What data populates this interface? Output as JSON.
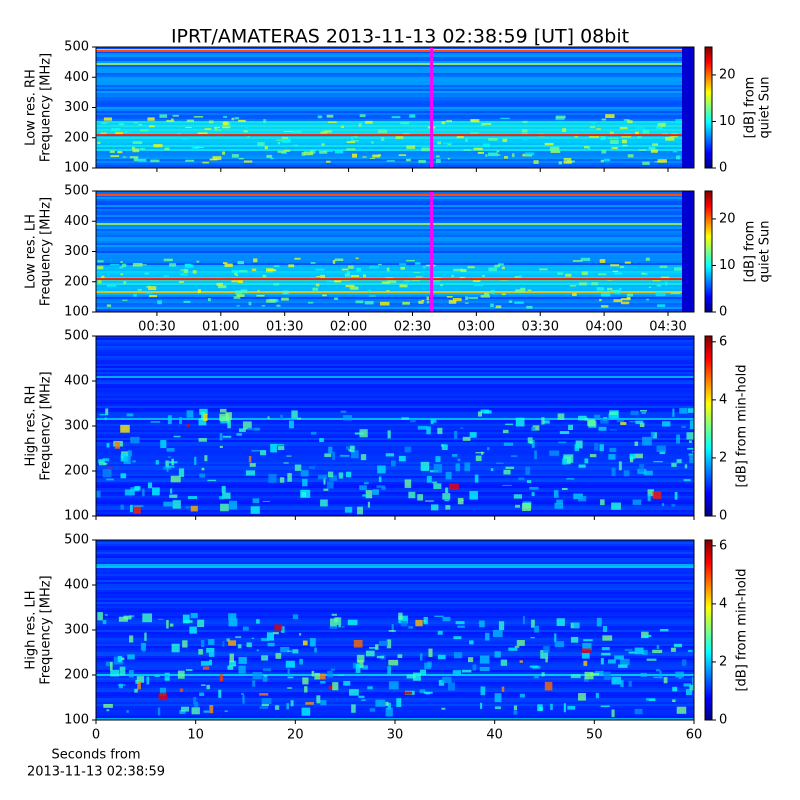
{
  "chart_data": [
    {
      "type": "heatmap",
      "title": "IPRT/AMATERAS 2013-11-13 02:38:59 [UT]   08bit",
      "ylabel": [
        "Low res. RH",
        "Frequency [MHz]"
      ],
      "ylim": [
        100,
        500
      ],
      "yticks": [
        100,
        200,
        300,
        400,
        500
      ],
      "xlim": [
        1.4,
        282.2
      ],
      "xticks": [
        30,
        60,
        90,
        120,
        150,
        180,
        210,
        240,
        270
      ],
      "show_xticklabels": false,
      "marker": {
        "x": 159,
        "color": "#ff00ff"
      },
      "colorbar": {
        "label": [
          "[dB] from",
          "quiet Sun"
        ],
        "lim": [
          0,
          26
        ],
        "ticks": [
          0,
          10,
          20
        ],
        "colormap": "jet"
      }
    },
    {
      "type": "heatmap",
      "ylabel": [
        "Low res. LH",
        "Frequency [MHz]"
      ],
      "ylim": [
        100,
        500
      ],
      "yticks": [
        100,
        200,
        300,
        400,
        500
      ],
      "xlim": [
        1.4,
        282.2
      ],
      "xticks": [
        {
          "value": 30,
          "label": "00:30"
        },
        {
          "value": 60,
          "label": "01:00"
        },
        {
          "value": 90,
          "label": "01:30"
        },
        {
          "value": 120,
          "label": "02:00"
        },
        {
          "value": 150,
          "label": "02:30"
        },
        {
          "value": 180,
          "label": "03:00"
        },
        {
          "value": 210,
          "label": "03:30"
        },
        {
          "value": 240,
          "label": "04:00"
        },
        {
          "value": 270,
          "label": "04:30"
        }
      ],
      "show_xticklabels": true,
      "marker": {
        "x": 159,
        "color": "#ff00ff"
      },
      "colorbar": {
        "label": [
          "[dB] from",
          "quiet Sun"
        ],
        "lim": [
          0,
          26
        ],
        "ticks": [
          0,
          10,
          20
        ],
        "colormap": "jet"
      }
    },
    {
      "type": "heatmap",
      "ylabel": [
        "High res. RH",
        "Frequency [MHz]"
      ],
      "ylim": [
        100,
        500
      ],
      "yticks": [
        100,
        200,
        300,
        400,
        500
      ],
      "xlim": [
        0,
        60
      ],
      "xticks": [
        0,
        10,
        20,
        30,
        40,
        50,
        60
      ],
      "show_xticklabels": false,
      "colorbar": {
        "label": [
          "[dB] from min-hold"
        ],
        "lim": [
          0,
          6.2
        ],
        "ticks": [
          0,
          2,
          4,
          6
        ],
        "colormap": "jet"
      }
    },
    {
      "type": "heatmap",
      "ylabel": [
        "High res. LH",
        "Frequency [MHz]"
      ],
      "ylim": [
        100,
        500
      ],
      "yticks": [
        100,
        200,
        300,
        400,
        500
      ],
      "xlim": [
        0,
        60
      ],
      "xticks": [
        0,
        10,
        20,
        30,
        40,
        50,
        60
      ],
      "show_xticklabels": true,
      "xlabel": [
        "Seconds from",
        "2013-11-13 02:38:59"
      ],
      "colorbar": {
        "label": [
          "[dB] from min-hold"
        ],
        "lim": [
          0,
          6.2
        ],
        "ticks": [
          0,
          2,
          4,
          6
        ],
        "colormap": "jet"
      }
    }
  ]
}
